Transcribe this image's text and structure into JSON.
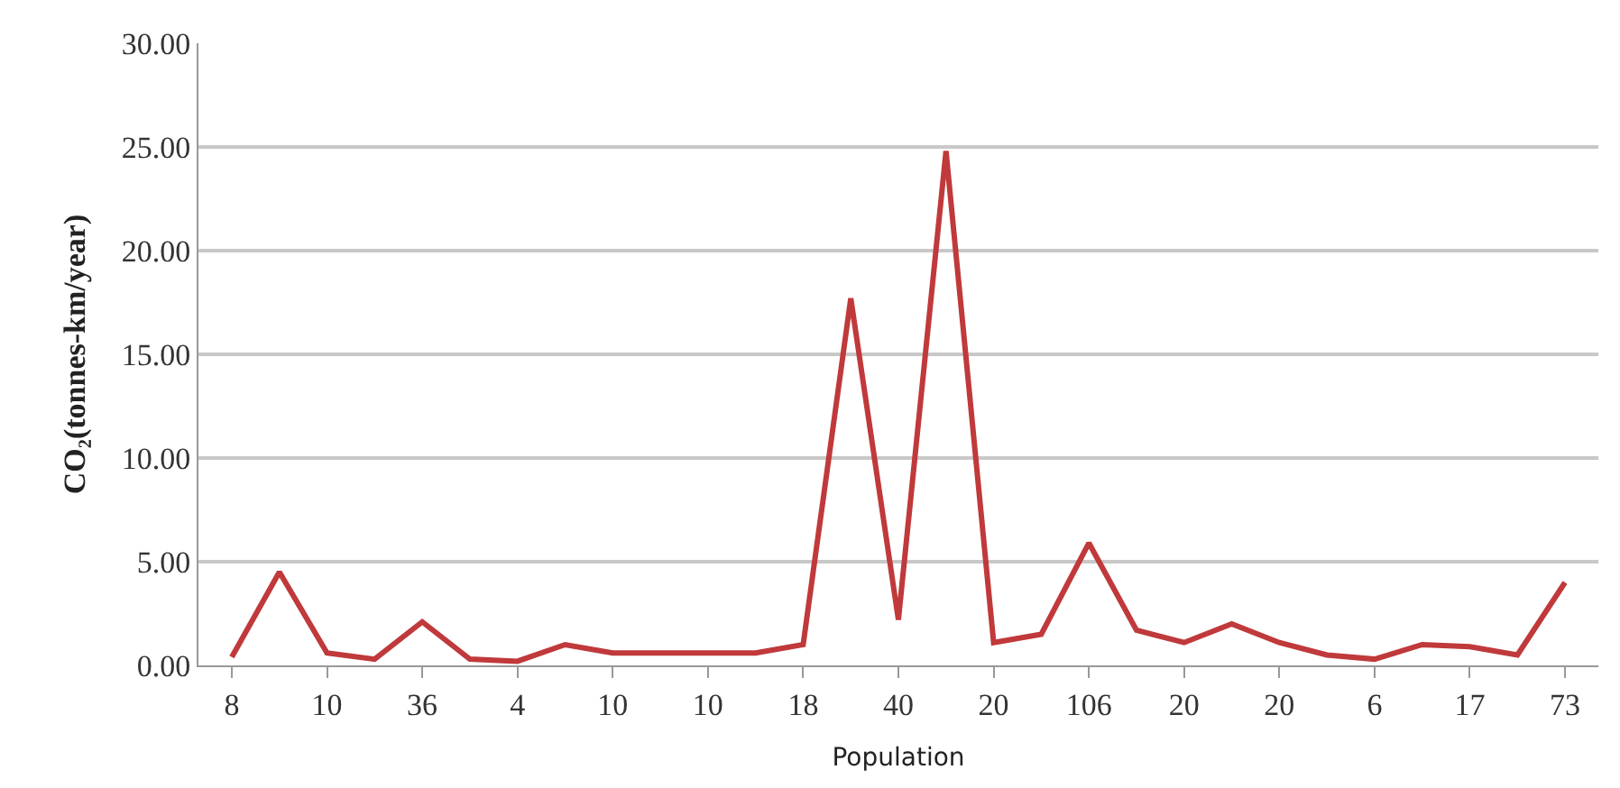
{
  "chart_data": {
    "type": "line",
    "xlabel": "Population",
    "ylabel": "CO₂(tonnes-km/year)",
    "categories": [
      "8",
      null,
      "10",
      null,
      "36",
      null,
      "4",
      null,
      "10",
      null,
      "10",
      null,
      "18",
      null,
      "40",
      null,
      "20",
      null,
      "106",
      null,
      "20",
      null,
      "20",
      null,
      "6",
      null,
      "17",
      null,
      "73"
    ],
    "series": [
      {
        "color": "#c0393b",
        "values": [
          0.4,
          4.5,
          0.6,
          0.3,
          2.1,
          0.3,
          0.2,
          1.0,
          0.6,
          0.6,
          0.6,
          0.6,
          1.0,
          17.7,
          2.2,
          24.8,
          1.1,
          1.5,
          5.9,
          1.7,
          1.1,
          2.0,
          1.1,
          0.5,
          0.3,
          1.0,
          0.9,
          0.5,
          4.0
        ]
      }
    ],
    "ylim": [
      0,
      30
    ],
    "yticks": [
      {
        "value": 0,
        "label": "0.00"
      },
      {
        "value": 5,
        "label": "5.00"
      },
      {
        "value": 10,
        "label": "10.00"
      },
      {
        "value": 15,
        "label": "15.00"
      },
      {
        "value": 20,
        "label": "20.00"
      },
      {
        "value": 25,
        "label": "25.00"
      },
      {
        "value": 30,
        "label": "30.00"
      }
    ],
    "grid": "y",
    "marker": "none",
    "line_style": "solid"
  }
}
